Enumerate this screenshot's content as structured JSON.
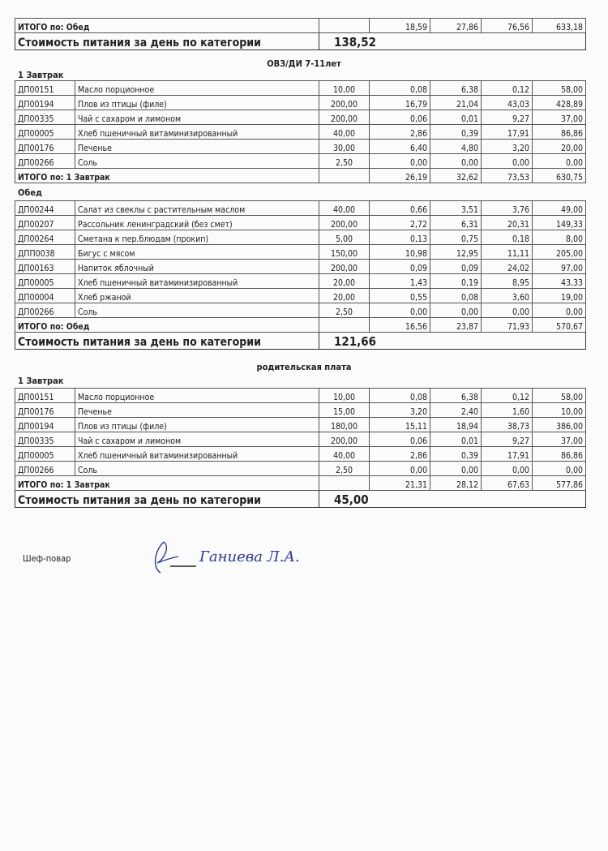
{
  "top": {
    "total": {
      "label": "ИТОГО по: Обед",
      "values": [
        "18,59",
        "27,86",
        "76,56",
        "633,18"
      ]
    },
    "cost": {
      "label": "Стоимость питания за день по категории",
      "value": "138,52"
    }
  },
  "sections": [
    {
      "title": "ОВЗ/ДИ 7-11лет",
      "meals": [
        {
          "name": "1 Завтрак",
          "rows": [
            [
              "ДП00151",
              "Масло порционное",
              "10,00",
              "0,08",
              "6,38",
              "0,12",
              "58,00"
            ],
            [
              "ДП00194",
              "Плов из птицы (филе)",
              "200,00",
              "16,79",
              "21,04",
              "43,03",
              "428,89"
            ],
            [
              "ДП00335",
              "Чай с сахаром и  лимоном",
              "200,00",
              "0,06",
              "0,01",
              "9,27",
              "37,00"
            ],
            [
              "ДП00005",
              "Хлеб пшеничный витаминизированный",
              "40,00",
              "2,86",
              "0,39",
              "17,91",
              "86,86"
            ],
            [
              "ДП00176",
              "Печенье",
              "30,00",
              "6,40",
              "4,80",
              "3,20",
              "20,00"
            ],
            [
              "ДП00266",
              "Соль",
              "2,50",
              "0,00",
              "0,00",
              "0,00",
              "0,00"
            ]
          ],
          "total": {
            "label": "ИТОГО по: 1 Завтрак",
            "values": [
              "26,19",
              "32,62",
              "73,53",
              "630,75"
            ]
          }
        },
        {
          "name": "Обед",
          "rows": [
            [
              "ДП00244",
              "Салат из свеклы с растительным маслом",
              "40,00",
              "0,66",
              "3,51",
              "3,76",
              "49,00"
            ],
            [
              "ДП00207",
              "Рассольник ленинградский (без смет)",
              "200,00",
              "2,72",
              "6,31",
              "20,31",
              "149,33"
            ],
            [
              "ДП00264",
              "Сметана к пер.блюдам (прокип)",
              "5,00",
              "0,13",
              "0,75",
              "0,18",
              "8,00"
            ],
            [
              "ДПП0038",
              "Бигус с мясом",
              "150,00",
              "10,98",
              "12,95",
              "11,11",
              "205,00"
            ],
            [
              "ДП00163",
              "Напиток яблочный",
              "200,00",
              "0,09",
              "0,09",
              "24,02",
              "97,00"
            ],
            [
              "ДП00005",
              "Хлеб пшеничный витаминизированный",
              "20,00",
              "1,43",
              "0,19",
              "8,95",
              "43,33"
            ],
            [
              "ДП00004",
              "Хлеб ржаной",
              "20,00",
              "0,55",
              "0,08",
              "3,60",
              "19,00"
            ],
            [
              "ДП00266",
              "Соль",
              "2,50",
              "0,00",
              "0,00",
              "0,00",
              "0,00"
            ]
          ],
          "total": {
            "label": "ИТОГО по: Обед",
            "values": [
              "16,56",
              "23,87",
              "71,93",
              "570,67"
            ]
          },
          "cost": {
            "label": "Стоимость питания за день по категории",
            "value": "121,66"
          }
        }
      ]
    },
    {
      "title": "родительская плата",
      "meals": [
        {
          "name": "1 Завтрак",
          "rows": [
            [
              "ДП00151",
              "Масло порционное",
              "10,00",
              "0,08",
              "6,38",
              "0,12",
              "58,00"
            ],
            [
              "ДП00176",
              "Печенье",
              "15,00",
              "3,20",
              "2,40",
              "1,60",
              "10,00"
            ],
            [
              "ДП00194",
              "Плов из птицы (филе)",
              "180,00",
              "15,11",
              "18,94",
              "38,73",
              "386,00"
            ],
            [
              "ДП00335",
              "Чай с сахаром и  лимоном",
              "200,00",
              "0,06",
              "0,01",
              "9,27",
              "37,00"
            ],
            [
              "ДП00005",
              "Хлеб пшеничный витаминизированный",
              "40,00",
              "2,86",
              "0,39",
              "17,91",
              "86,86"
            ],
            [
              "ДП00266",
              "Соль",
              "2,50",
              "0,00",
              "0,00",
              "0,00",
              "0,00"
            ]
          ],
          "total": {
            "label": "ИТОГО по: 1 Завтрак",
            "values": [
              "21,31",
              "28,12",
              "67,63",
              "577,86"
            ]
          },
          "cost": {
            "label": "Стоимость питания за день по категории",
            "value": "45,00"
          }
        }
      ]
    }
  ],
  "footer": {
    "role": "Шеф-повар",
    "signature": "Ганиева Л.А."
  }
}
